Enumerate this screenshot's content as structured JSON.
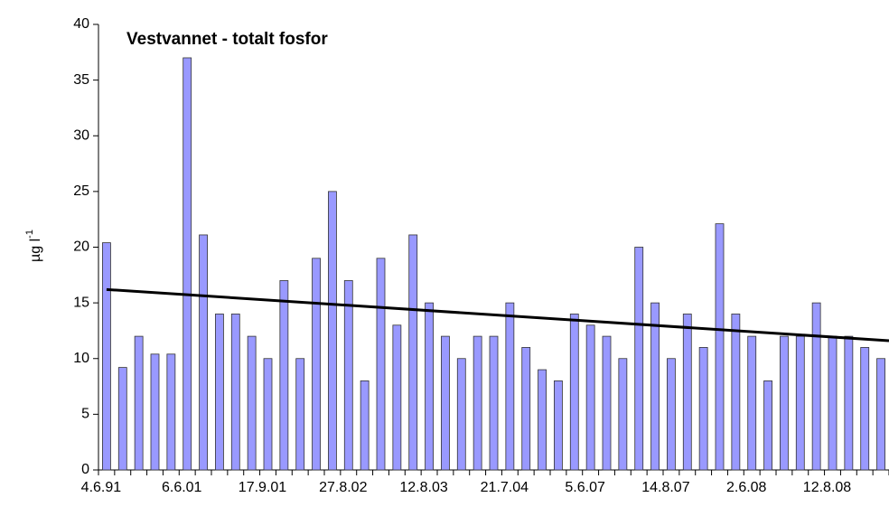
{
  "chart_data": {
    "type": "bar",
    "title": "Vestvannet - totalt fosfor",
    "y_label": {
      "base": "µg l",
      "sup": "-1"
    },
    "categories": [
      "4.6.91",
      null,
      null,
      null,
      null,
      "6.6.01",
      null,
      null,
      null,
      null,
      "17.9.01",
      null,
      null,
      null,
      null,
      "27.8.02",
      null,
      null,
      null,
      null,
      "12.8.03",
      null,
      null,
      null,
      null,
      "21.7.04",
      null,
      null,
      null,
      null,
      "5.6.07",
      null,
      null,
      null,
      null,
      "14.8.07",
      null,
      null,
      null,
      null,
      "2.6.08",
      null,
      null,
      null,
      null,
      "12.8.08",
      null,
      null,
      null
    ],
    "values": [
      20.4,
      9.2,
      12,
      10.4,
      10.4,
      37,
      21.1,
      14,
      14,
      12,
      10,
      17,
      10,
      19,
      25,
      17,
      8,
      19,
      13,
      21.1,
      15,
      12,
      10,
      12,
      12,
      15,
      11,
      9,
      8,
      14,
      13,
      12,
      10,
      20,
      15,
      10,
      14,
      11,
      22.1,
      14,
      12,
      8,
      12,
      12,
      15,
      12,
      12,
      11,
      10
    ],
    "color": "#9999ff",
    "trend": [
      16.2,
      11.6
    ],
    "ylim": [
      0,
      40
    ],
    "yticks": [
      0,
      5,
      10,
      15,
      20,
      25,
      30,
      35,
      40
    ]
  }
}
